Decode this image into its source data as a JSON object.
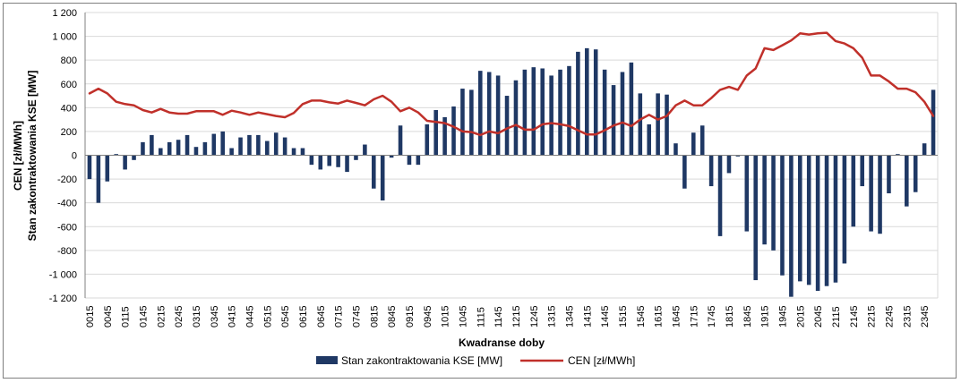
{
  "chart_data": {
    "type": "bar",
    "xlabel": "Kwadranse doby",
    "ylabel_lines": [
      "CEN [zł/MWh]",
      "Stan zakontraktowania KSE [MW]"
    ],
    "ylim": [
      -1200,
      1200
    ],
    "yticks": [
      -1200,
      -1000,
      -800,
      -600,
      -400,
      -200,
      0,
      200,
      400,
      600,
      800,
      1000,
      1200
    ],
    "ytick_labels": [
      "-1 200",
      "-1 000",
      "-800",
      "-600",
      "-400",
      "-200",
      "0",
      "200",
      "400",
      "600",
      "800",
      "1 000",
      "1 200"
    ],
    "grid": true,
    "legend_position": "bottom",
    "colors": {
      "bars": "#1f3864",
      "line": "#c0302a",
      "grid": "#d9d9d9",
      "axis": "#808080"
    },
    "x_tick_labels": [
      "0015",
      "0045",
      "0115",
      "0145",
      "0215",
      "0245",
      "0315",
      "0345",
      "0415",
      "0445",
      "0515",
      "0545",
      "0615",
      "0645",
      "0715",
      "0745",
      "0815",
      "0845",
      "0915",
      "0945",
      "1015",
      "1045",
      "1115",
      "1145",
      "1215",
      "1245",
      "1315",
      "1345",
      "1415",
      "1445",
      "1515",
      "1545",
      "1615",
      "1645",
      "1715",
      "1745",
      "1815",
      "1845",
      "1915",
      "1945",
      "2015",
      "2045",
      "2115",
      "2145",
      "2215",
      "2245",
      "2315",
      "2345"
    ],
    "series": [
      {
        "name": "Stan zakontraktowania KSE [MW]",
        "type": "bar",
        "values": [
          -200,
          -400,
          -220,
          10,
          -120,
          -40,
          110,
          170,
          60,
          110,
          130,
          170,
          70,
          110,
          180,
          200,
          60,
          150,
          170,
          170,
          120,
          190,
          150,
          60,
          60,
          -80,
          -120,
          -90,
          -100,
          -140,
          -40,
          90,
          -280,
          -380,
          -20,
          250,
          -80,
          -80,
          260,
          380,
          320,
          410,
          560,
          550,
          710,
          700,
          670,
          500,
          630,
          720,
          740,
          730,
          670,
          720,
          750,
          870,
          900,
          890,
          720,
          590,
          700,
          780,
          520,
          260,
          520,
          510,
          100,
          -280,
          190,
          250,
          -260,
          -680,
          -150,
          -10,
          -640,
          -1050,
          -750,
          -800,
          -1010,
          -1190,
          -1060,
          -1090,
          -1140,
          -1100,
          -1070,
          -910,
          -600,
          -260,
          -640,
          -660,
          -320,
          10,
          -430,
          -310,
          100,
          550
        ]
      },
      {
        "name": "CEN [zł/MWh]",
        "type": "line",
        "values": [
          520,
          560,
          520,
          450,
          430,
          420,
          380,
          360,
          390,
          360,
          350,
          350,
          370,
          370,
          370,
          340,
          375,
          360,
          340,
          360,
          345,
          330,
          320,
          355,
          430,
          460,
          460,
          445,
          435,
          460,
          440,
          420,
          470,
          500,
          450,
          370,
          400,
          360,
          290,
          280,
          270,
          240,
          200,
          195,
          170,
          200,
          185,
          225,
          255,
          215,
          215,
          260,
          270,
          260,
          245,
          210,
          175,
          175,
          210,
          250,
          275,
          245,
          300,
          340,
          300,
          330,
          420,
          460,
          420,
          420,
          480,
          550,
          575,
          550,
          670,
          730,
          900,
          885,
          925,
          965,
          1025,
          1015,
          1025,
          1030,
          960,
          940,
          900,
          820,
          670,
          670,
          620,
          560,
          560,
          530,
          450,
          330
        ]
      }
    ]
  }
}
